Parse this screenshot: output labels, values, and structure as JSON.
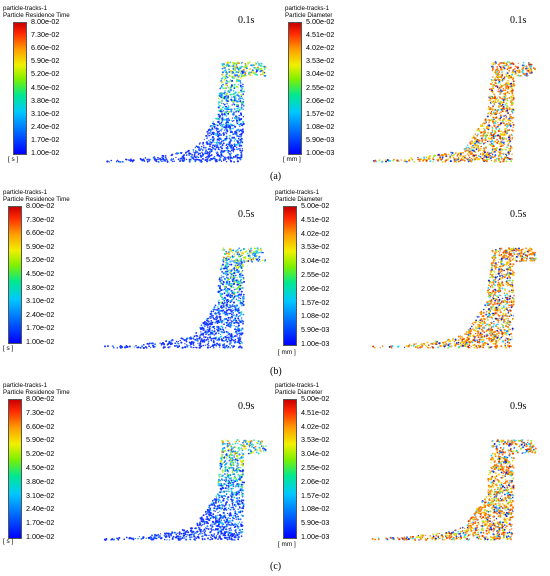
{
  "colorbars": {
    "residence": {
      "title_line1": "particle-tracks-1",
      "title_line2": "Particle Residence Time",
      "unit": "[ s ]",
      "ticks": [
        "8.00e-02",
        "7.30e-02",
        "6.60e-02",
        "5.90e-02",
        "5.20e-02",
        "4.50e-02",
        "3.80e-02",
        "3.10e-02",
        "2.40e-02",
        "1.70e-02",
        "1.00e-02"
      ]
    },
    "diameter": {
      "title_line1": "particle-tracks-1",
      "title_line2": "Particle Diameter",
      "unit": "[ mm ]",
      "ticks": [
        "5.00e-02",
        "4.51e-02",
        "4.02e-02",
        "3.53e-02",
        "3.04e-02",
        "2.55e-02",
        "2.06e-02",
        "1.57e-02",
        "1.08e-02",
        "5.90e-03",
        "1.00e-03"
      ]
    }
  },
  "panels": [
    {
      "time": "0.1s",
      "caption": "(a)"
    },
    {
      "time": "0.5s",
      "caption": "(b)"
    },
    {
      "time": "0.9s",
      "caption": "(c)"
    }
  ],
  "colors": {
    "residence_dominant": "#1e46ff",
    "diameter_dominant": "#ff7a00"
  }
}
